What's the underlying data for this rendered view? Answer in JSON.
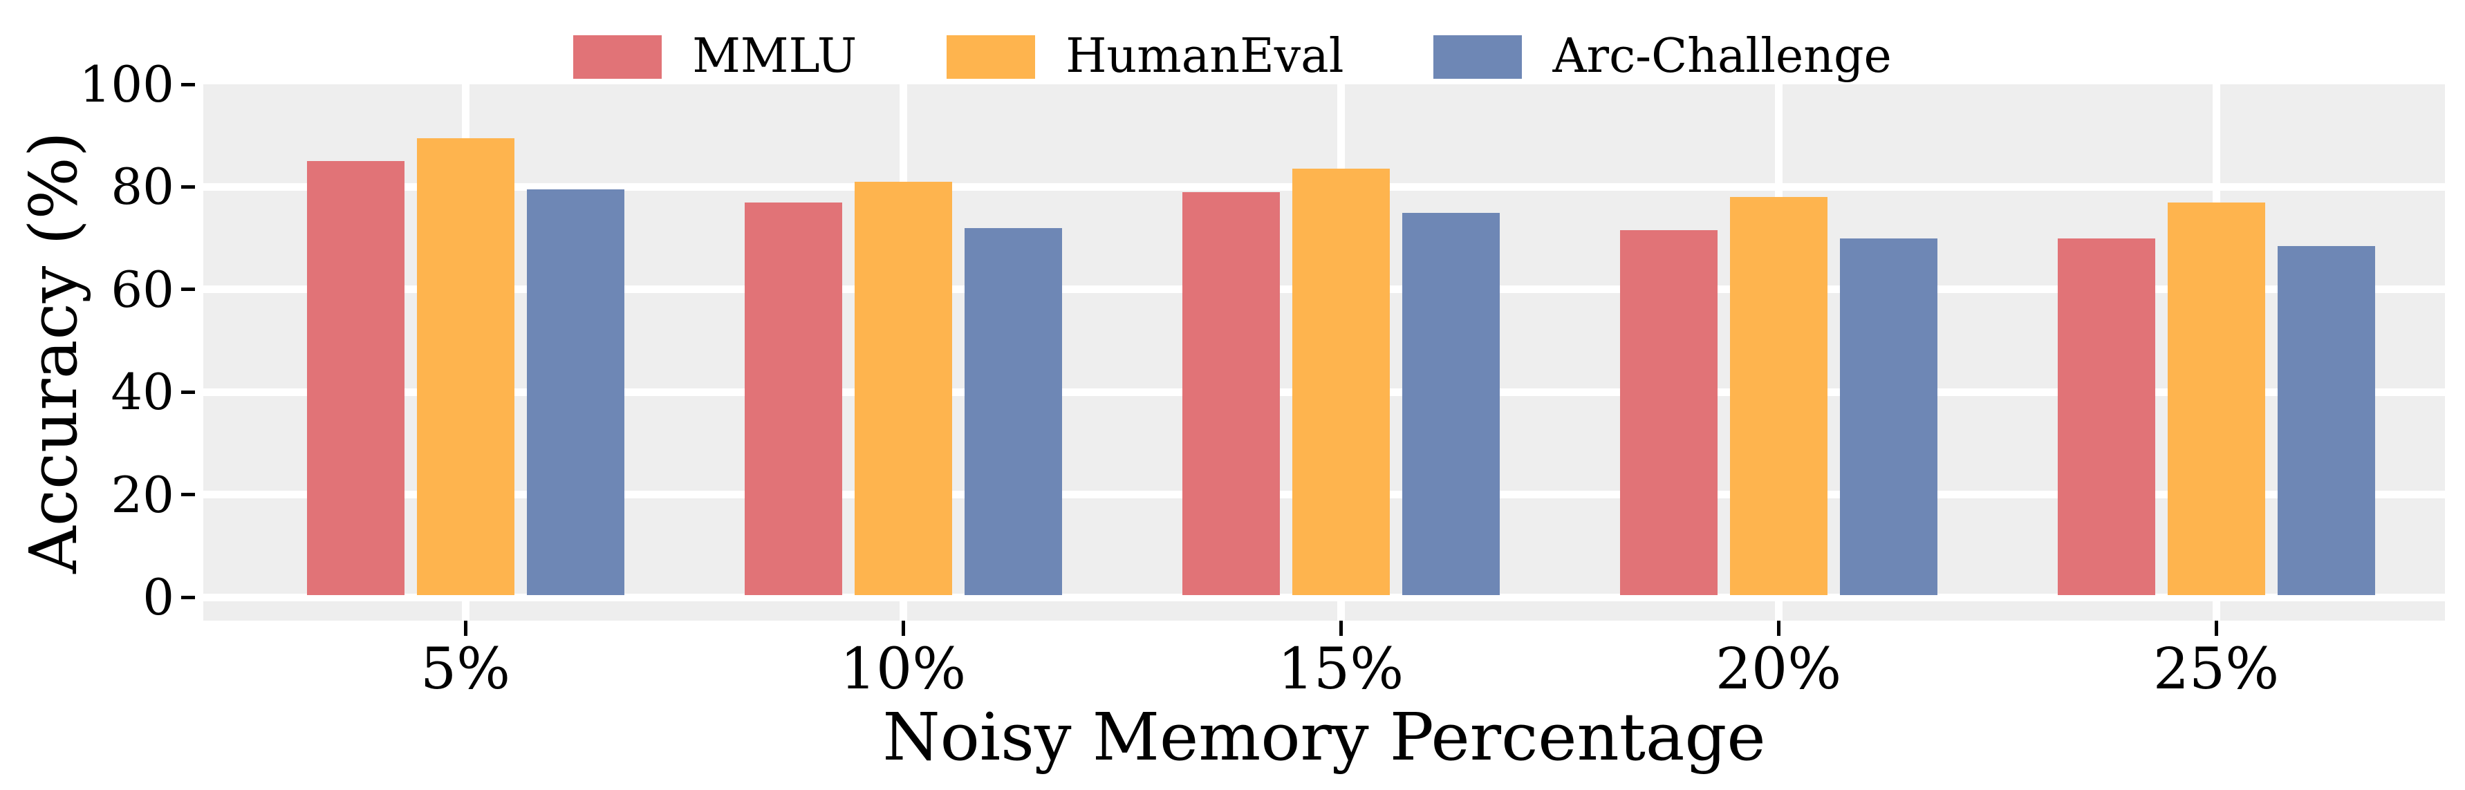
{
  "chart_data": {
    "type": "bar",
    "title": "",
    "categories": [
      "5%",
      "10%",
      "15%",
      "20%",
      "25%"
    ],
    "series": [
      {
        "name": "MMLU",
        "color": "#E17377",
        "values": [
          85.0,
          77.0,
          79.0,
          71.5,
          70.0
        ]
      },
      {
        "name": "HumanEval",
        "color": "#FEB44E",
        "values": [
          89.5,
          81.0,
          83.5,
          78.0,
          77.0
        ]
      },
      {
        "name": "Arc-Challenge",
        "color": "#6E87B5",
        "values": [
          79.5,
          72.0,
          75.0,
          70.0,
          68.5
        ]
      }
    ],
    "xlabel": "Noisy Memory Percentage",
    "ylabel": "Accuracy (%)",
    "ylim": [
      0,
      100
    ],
    "yticks": [
      0,
      20,
      40,
      60,
      80,
      100
    ],
    "grid": true,
    "legend_position": "top-center",
    "colors": {
      "plot_background": "#EEEEEE",
      "gridline": "#FFFFFF",
      "text": "#000000",
      "figure_background": "#FFFFFF"
    }
  }
}
